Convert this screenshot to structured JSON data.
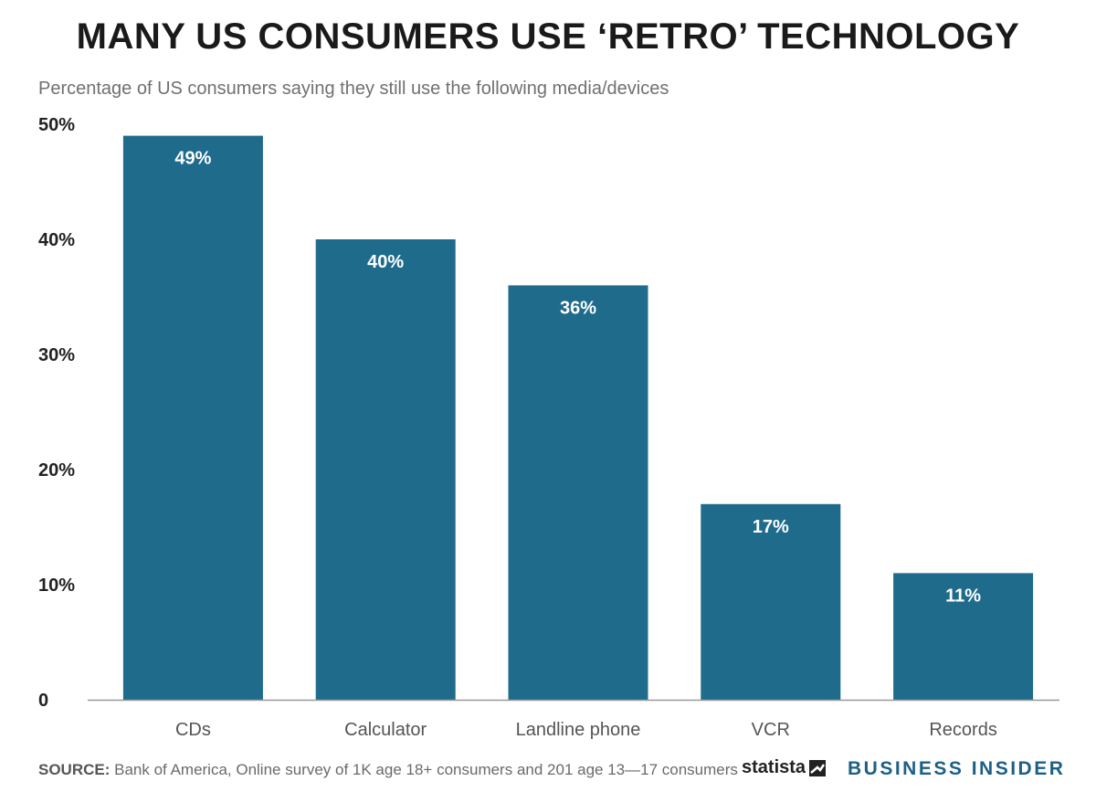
{
  "header": {
    "title": "MANY US CONSUMERS USE ‘RETRO’ TECHNOLOGY",
    "subtitle": "Percentage of US consumers saying they still use the following media/devices"
  },
  "colors": {
    "bar": "#1f6b8c",
    "bar_label": "#ffffff",
    "axis": "#999999",
    "tick_text": "#222222",
    "category_text": "#555555",
    "brand_bi": "#1d5f86"
  },
  "chart_data": {
    "type": "bar",
    "categories": [
      "CDs",
      "Calculator",
      "Landline phone",
      "VCR",
      "Records"
    ],
    "values": [
      49,
      40,
      36,
      17,
      11
    ],
    "data_labels": [
      "49%",
      "40%",
      "36%",
      "17%",
      "11%"
    ],
    "ylim": [
      0,
      50
    ],
    "yticks": [
      0,
      10,
      20,
      30,
      40,
      50
    ],
    "ytick_labels": [
      "0",
      "10%",
      "20%",
      "30%",
      "40%",
      "50%"
    ],
    "title": "MANY US CONSUMERS USE ‘RETRO’ TECHNOLOGY",
    "subtitle": "Percentage of US consumers saying they still use the following media/devices",
    "xlabel": "",
    "ylabel": "",
    "grid": false,
    "legend": "none"
  },
  "footer": {
    "source_label": "SOURCE:",
    "source_text": " Bank of America, Online survey of 1K age 18+ consumers and 201 age 13—17 consumers",
    "statista_logo": "statista",
    "business_insider_logo": "BUSINESS INSIDER"
  }
}
